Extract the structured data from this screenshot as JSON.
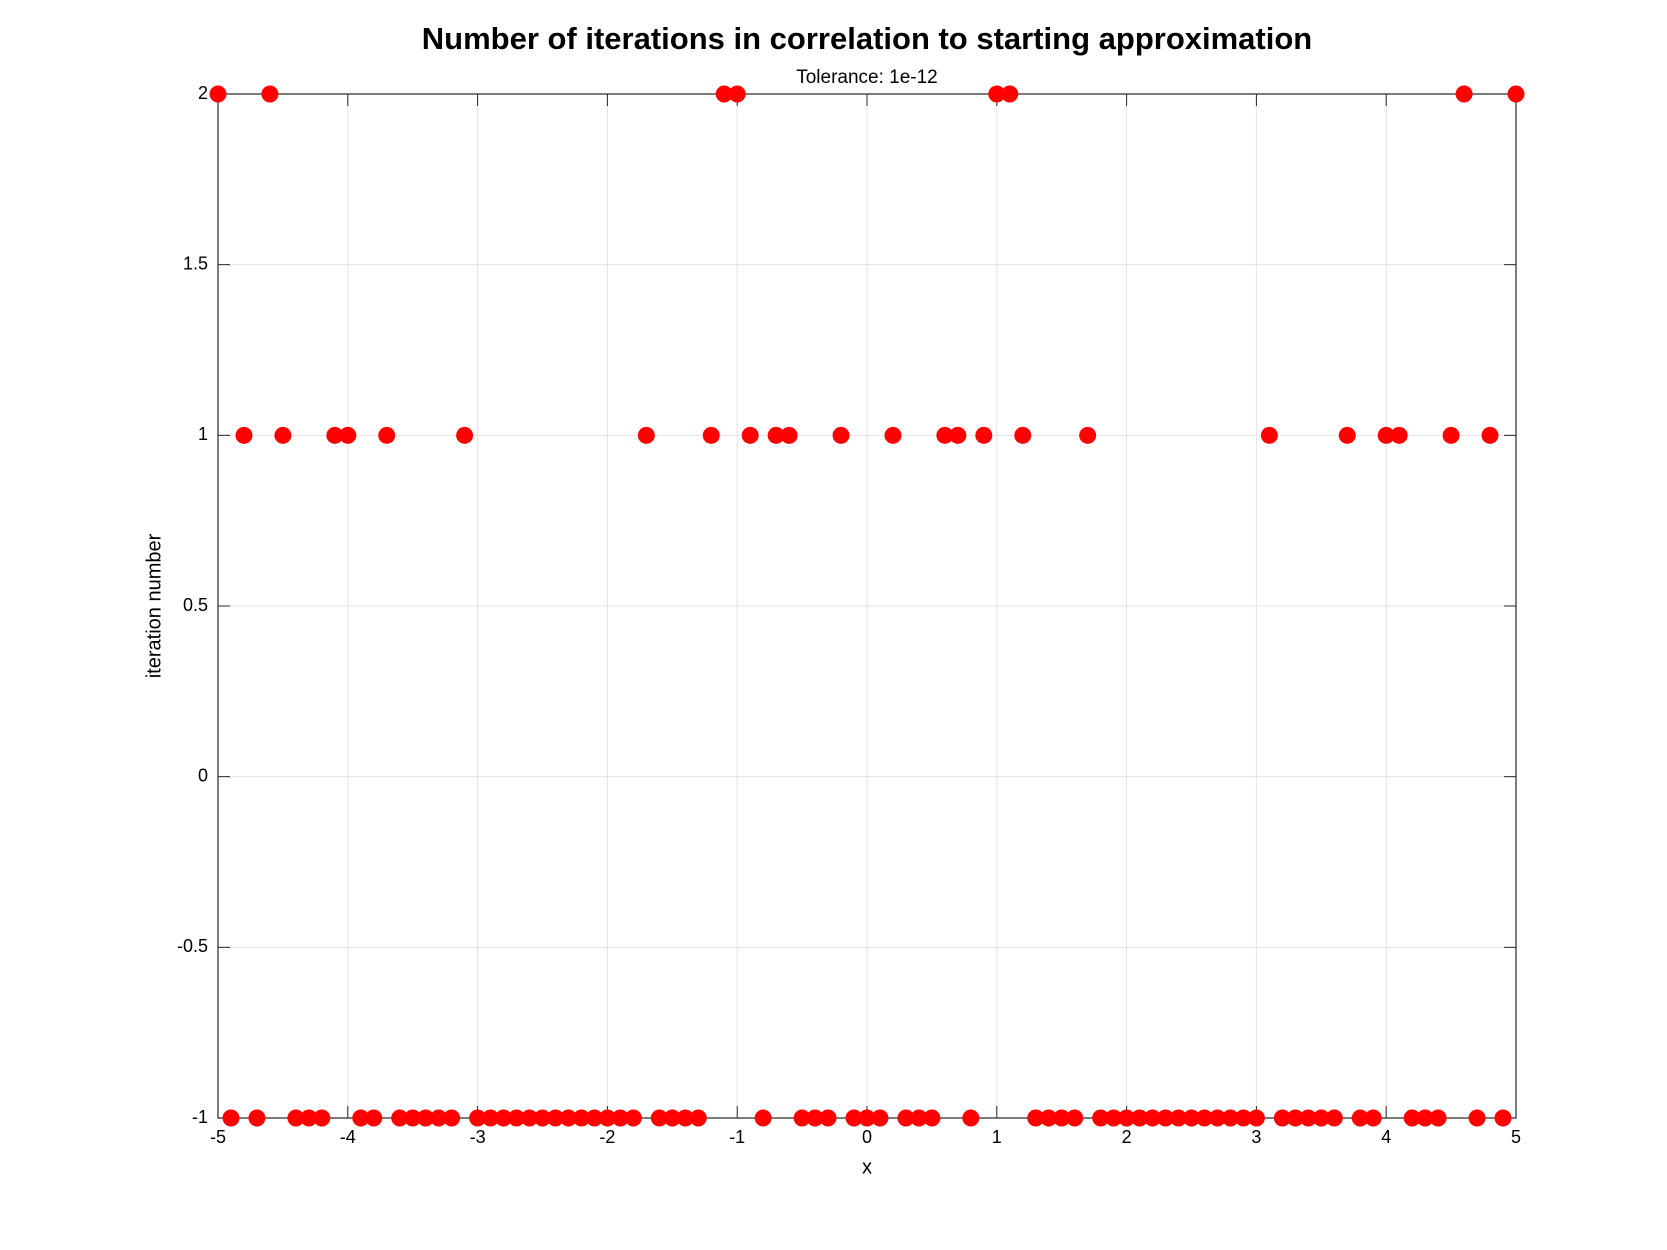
{
  "chart_data": {
    "type": "scatter",
    "title": "Number of iterations in correlation to starting approximation",
    "subtitle": "Tolerance: 1e-12",
    "x_label": "x",
    "y_label": "iteration number",
    "x": [
      -5,
      -4.9,
      -4.8,
      -4.7,
      -4.6,
      -4.5,
      -4.4,
      -4.3,
      -4.2,
      -4.1,
      -4,
      -3.9,
      -3.8,
      -3.7,
      -3.6,
      -3.5,
      -3.4,
      -3.3,
      -3.2,
      -3.1,
      -3,
      -2.9,
      -2.8,
      -2.7,
      -2.6,
      -2.5,
      -2.4,
      -2.3,
      -2.2,
      -2.1,
      -2,
      -1.9,
      -1.8,
      -1.7,
      -1.6,
      -1.5,
      -1.4,
      -1.3,
      -1.2,
      -1.1,
      -1,
      -0.9,
      -0.8,
      -0.7,
      -0.6,
      -0.5,
      -0.4,
      -0.3,
      -0.2,
      -0.1,
      0,
      0.1,
      0.2,
      0.3,
      0.4,
      0.5,
      0.6,
      0.7,
      0.8,
      0.9,
      1,
      1.1,
      1.2,
      1.3,
      1.4,
      1.5,
      1.6,
      1.7,
      1.8,
      1.9,
      2,
      2.1,
      2.2,
      2.3,
      2.4,
      2.5,
      2.6,
      2.7,
      2.8,
      2.9,
      3,
      3.1,
      3.2,
      3.3,
      3.4,
      3.5,
      3.6,
      3.7,
      3.8,
      3.9,
      4,
      4.1,
      4.2,
      4.3,
      4.4,
      4.5,
      4.6,
      4.7,
      4.8,
      4.9,
      5
    ],
    "values": [
      2,
      -1,
      1,
      -1,
      2,
      1,
      -1,
      -1,
      -1,
      1,
      1,
      -1,
      -1,
      1,
      -1,
      -1,
      -1,
      -1,
      -1,
      1,
      -1,
      -1,
      -1,
      -1,
      -1,
      -1,
      -1,
      -1,
      -1,
      -1,
      -1,
      -1,
      -1,
      1,
      -1,
      -1,
      -1,
      -1,
      1,
      2,
      2,
      1,
      -1,
      1,
      1,
      -1,
      -1,
      -1,
      1,
      -1,
      -1,
      -1,
      1,
      -1,
      -1,
      -1,
      1,
      1,
      -1,
      1,
      2,
      2,
      1,
      -1,
      -1,
      -1,
      -1,
      1,
      -1,
      -1,
      -1,
      -1,
      -1,
      -1,
      -1,
      -1,
      -1,
      -1,
      -1,
      -1,
      -1,
      1,
      -1,
      -1,
      -1,
      -1,
      -1,
      1,
      -1,
      -1,
      1,
      1,
      -1,
      -1,
      -1,
      1,
      2,
      -1,
      1,
      -1,
      2
    ],
    "color": "#ff0000",
    "xlim": [
      -5,
      5
    ],
    "xticks": [
      -5,
      -4,
      -3,
      -2,
      -1,
      0,
      1,
      2,
      3,
      4,
      5
    ],
    "ylim": [
      -1,
      2
    ],
    "yticks": [
      -1,
      -0.5,
      0,
      0.5,
      1,
      1.5,
      2
    ],
    "grid": true
  }
}
